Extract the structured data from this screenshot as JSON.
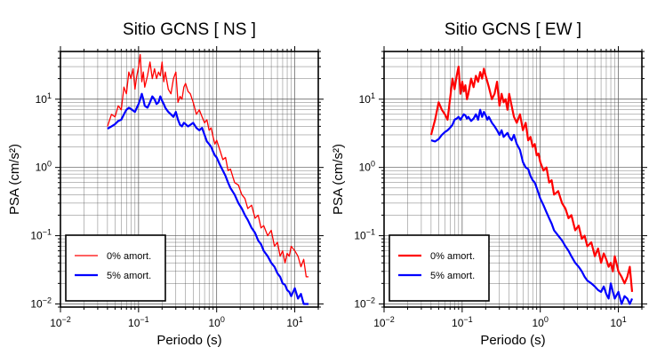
{
  "chart_data": [
    {
      "type": "line",
      "title": "Sitio GCNS [ NS ]",
      "xlabel": "Periodo (s)",
      "ylabel": "PSA (cm/s²)",
      "xscale": "log",
      "yscale": "log",
      "xlim": [
        0.01,
        20
      ],
      "ylim": [
        0.009,
        50
      ],
      "grid": true,
      "legend_position": "bottom-left",
      "xticks": [
        {
          "value": 0.01,
          "base": "10",
          "exp": "−2"
        },
        {
          "value": 0.1,
          "base": "10",
          "exp": "−1"
        },
        {
          "value": 1,
          "base": "10",
          "exp": "0"
        },
        {
          "value": 10,
          "base": "10",
          "exp": "1"
        }
      ],
      "yticks": [
        {
          "value": 0.01,
          "base": "10",
          "exp": "−2"
        },
        {
          "value": 0.1,
          "base": "10",
          "exp": "−1"
        },
        {
          "value": 1,
          "base": "10",
          "exp": "0"
        },
        {
          "value": 10,
          "base": "10",
          "exp": "1"
        }
      ],
      "series": [
        {
          "name": "0% amort.",
          "color": "#ff0000",
          "width": 1.3,
          "x": [
            0.04,
            0.045,
            0.05,
            0.055,
            0.06,
            0.065,
            0.07,
            0.075,
            0.08,
            0.085,
            0.09,
            0.095,
            0.1,
            0.105,
            0.11,
            0.115,
            0.12,
            0.13,
            0.14,
            0.15,
            0.16,
            0.17,
            0.18,
            0.19,
            0.2,
            0.21,
            0.22,
            0.24,
            0.26,
            0.28,
            0.3,
            0.32,
            0.34,
            0.36,
            0.38,
            0.4,
            0.43,
            0.46,
            0.5,
            0.55,
            0.6,
            0.65,
            0.7,
            0.75,
            0.8,
            0.85,
            0.9,
            0.95,
            1.0,
            1.1,
            1.2,
            1.3,
            1.4,
            1.5,
            1.7,
            1.9,
            2.1,
            2.3,
            2.5,
            2.8,
            3.1,
            3.4,
            3.7,
            4.0,
            4.5,
            5.0,
            5.5,
            6.0,
            6.5,
            7.0,
            7.5,
            8.0,
            8.5,
            9.0,
            10.0,
            11.0,
            12.0,
            13.0,
            14.0,
            15.0
          ],
          "y": [
            4,
            6,
            5.5,
            8,
            7,
            15,
            12,
            25,
            20,
            28,
            14,
            22,
            30,
            45,
            18,
            25,
            15,
            22,
            35,
            20,
            28,
            20,
            25,
            22,
            35,
            18,
            25,
            14,
            12,
            20,
            25,
            9,
            11,
            10,
            15,
            17,
            13,
            12,
            9,
            6,
            7,
            5.5,
            4.5,
            5,
            3.5,
            3.8,
            2.8,
            2.2,
            2.5,
            1.8,
            1.3,
            1.4,
            0.9,
            0.95,
            0.6,
            0.55,
            0.4,
            0.35,
            0.25,
            0.28,
            0.18,
            0.2,
            0.13,
            0.14,
            0.1,
            0.12,
            0.07,
            0.08,
            0.05,
            0.06,
            0.04,
            0.055,
            0.05,
            0.07,
            0.06,
            0.05,
            0.035,
            0.045,
            0.025,
            0.025
          ]
        },
        {
          "name": "5% amort.",
          "color": "#0000ff",
          "width": 2.2,
          "x": [
            0.04,
            0.045,
            0.05,
            0.055,
            0.06,
            0.065,
            0.07,
            0.075,
            0.08,
            0.085,
            0.09,
            0.095,
            0.1,
            0.105,
            0.11,
            0.115,
            0.12,
            0.13,
            0.14,
            0.15,
            0.16,
            0.17,
            0.18,
            0.19,
            0.2,
            0.21,
            0.22,
            0.24,
            0.26,
            0.28,
            0.3,
            0.32,
            0.34,
            0.36,
            0.38,
            0.4,
            0.43,
            0.46,
            0.5,
            0.55,
            0.6,
            0.65,
            0.7,
            0.75,
            0.8,
            0.85,
            0.9,
            0.95,
            1.0,
            1.1,
            1.2,
            1.3,
            1.4,
            1.5,
            1.7,
            1.9,
            2.1,
            2.3,
            2.5,
            2.8,
            3.1,
            3.4,
            3.7,
            4.0,
            4.5,
            5.0,
            5.5,
            6.0,
            6.5,
            7.0,
            7.5,
            8.0,
            8.5,
            9.0,
            10.0,
            11.0,
            12.0,
            13.0,
            14.0,
            15.0
          ],
          "y": [
            3.7,
            4.0,
            4.3,
            4.8,
            5.0,
            6.0,
            7.0,
            7.5,
            7.2,
            6.8,
            6.5,
            7.5,
            8.5,
            10.0,
            12.0,
            10.0,
            8.0,
            7.5,
            9.0,
            11.0,
            10.0,
            8.5,
            9.0,
            11.0,
            9.5,
            8.5,
            7.5,
            6.5,
            6.0,
            5.5,
            6.5,
            5.0,
            4.2,
            4.0,
            4.5,
            4.3,
            4.0,
            4.2,
            4.5,
            3.8,
            3.5,
            3.8,
            3.0,
            2.4,
            2.2,
            2.0,
            1.7,
            1.5,
            1.4,
            1.1,
            0.9,
            0.75,
            0.6,
            0.5,
            0.4,
            0.3,
            0.25,
            0.2,
            0.17,
            0.13,
            0.11,
            0.085,
            0.075,
            0.06,
            0.05,
            0.04,
            0.035,
            0.028,
            0.025,
            0.02,
            0.019,
            0.016,
            0.015,
            0.013,
            0.017,
            0.012,
            0.014,
            0.01,
            0.01,
            0.01
          ]
        }
      ]
    },
    {
      "type": "line",
      "title": "Sitio GCNS [ EW ]",
      "xlabel": "Periodo (s)",
      "ylabel": "PSA (cm/s²)",
      "xscale": "log",
      "yscale": "log",
      "xlim": [
        0.01,
        20
      ],
      "ylim": [
        0.009,
        50
      ],
      "grid": true,
      "legend_position": "bottom-left",
      "xticks": [
        {
          "value": 0.01,
          "base": "10",
          "exp": "−2"
        },
        {
          "value": 0.1,
          "base": "10",
          "exp": "−1"
        },
        {
          "value": 1,
          "base": "10",
          "exp": "0"
        },
        {
          "value": 10,
          "base": "10",
          "exp": "1"
        }
      ],
      "yticks": [
        {
          "value": 0.01,
          "base": "10",
          "exp": "−2"
        },
        {
          "value": 0.1,
          "base": "10",
          "exp": "−1"
        },
        {
          "value": 1,
          "base": "10",
          "exp": "0"
        },
        {
          "value": 10,
          "base": "10",
          "exp": "1"
        }
      ],
      "series": [
        {
          "name": "0% amort.",
          "color": "#ff0000",
          "width": 2.2,
          "x": [
            0.04,
            0.045,
            0.05,
            0.055,
            0.06,
            0.065,
            0.07,
            0.075,
            0.08,
            0.085,
            0.09,
            0.095,
            0.1,
            0.105,
            0.11,
            0.115,
            0.12,
            0.13,
            0.14,
            0.15,
            0.16,
            0.17,
            0.18,
            0.19,
            0.2,
            0.21,
            0.22,
            0.24,
            0.26,
            0.28,
            0.3,
            0.32,
            0.34,
            0.36,
            0.38,
            0.4,
            0.43,
            0.46,
            0.5,
            0.55,
            0.6,
            0.65,
            0.7,
            0.75,
            0.8,
            0.85,
            0.9,
            0.95,
            1.0,
            1.1,
            1.2,
            1.3,
            1.4,
            1.5,
            1.7,
            1.9,
            2.1,
            2.3,
            2.5,
            2.8,
            3.1,
            3.4,
            3.7,
            4.0,
            4.5,
            5.0,
            5.5,
            6.0,
            6.5,
            7.0,
            7.5,
            8.0,
            8.5,
            9.0,
            10.0,
            11.0,
            12.0,
            13.0,
            14.0,
            15.0
          ],
          "y": [
            3,
            5,
            9,
            7,
            6,
            5,
            10,
            20,
            14,
            22,
            30,
            12,
            18,
            13,
            16,
            10,
            12,
            20,
            15,
            22,
            18,
            25,
            20,
            28,
            22,
            18,
            15,
            10,
            12,
            18,
            8,
            12,
            9,
            10,
            7,
            12,
            8,
            5.5,
            4.5,
            6,
            3.5,
            4.5,
            2.5,
            2.8,
            2.0,
            2.2,
            1.5,
            1.6,
            1.2,
            0.9,
            1.0,
            0.6,
            0.65,
            0.4,
            0.45,
            0.3,
            0.25,
            0.18,
            0.2,
            0.12,
            0.14,
            0.09,
            0.1,
            0.07,
            0.08,
            0.05,
            0.065,
            0.04,
            0.055,
            0.045,
            0.035,
            0.04,
            0.03,
            0.05,
            0.03,
            0.025,
            0.02,
            0.025,
            0.035,
            0.015
          ]
        },
        {
          "name": "5% amort.",
          "color": "#0000ff",
          "width": 2.2,
          "x": [
            0.04,
            0.045,
            0.05,
            0.055,
            0.06,
            0.065,
            0.07,
            0.075,
            0.08,
            0.085,
            0.09,
            0.095,
            0.1,
            0.105,
            0.11,
            0.115,
            0.12,
            0.13,
            0.14,
            0.15,
            0.16,
            0.17,
            0.18,
            0.19,
            0.2,
            0.21,
            0.22,
            0.24,
            0.26,
            0.28,
            0.3,
            0.32,
            0.34,
            0.36,
            0.38,
            0.4,
            0.43,
            0.46,
            0.5,
            0.55,
            0.6,
            0.65,
            0.7,
            0.75,
            0.8,
            0.85,
            0.9,
            0.95,
            1.0,
            1.1,
            1.2,
            1.3,
            1.4,
            1.5,
            1.7,
            1.9,
            2.1,
            2.3,
            2.5,
            2.8,
            3.1,
            3.4,
            3.7,
            4.0,
            4.5,
            5.0,
            5.5,
            6.0,
            6.5,
            7.0,
            7.5,
            8.0,
            8.5,
            9.0,
            10.0,
            11.0,
            12.0,
            13.0,
            14.0,
            15.0
          ],
          "y": [
            2.5,
            2.4,
            2.6,
            3.0,
            3.3,
            3.5,
            3.8,
            4.2,
            5.0,
            5.2,
            5.5,
            5.0,
            5.5,
            6.0,
            5.8,
            5.2,
            5.5,
            4.8,
            5.2,
            6.0,
            5.0,
            7.0,
            5.5,
            6.5,
            5.8,
            5.0,
            5.5,
            4.5,
            4.0,
            3.5,
            3.0,
            3.5,
            2.8,
            3.0,
            3.2,
            2.8,
            2.5,
            3.0,
            2.2,
            1.8,
            1.2,
            1.0,
            0.95,
            0.75,
            0.65,
            0.6,
            0.5,
            0.42,
            0.35,
            0.28,
            0.22,
            0.18,
            0.15,
            0.12,
            0.1,
            0.085,
            0.07,
            0.06,
            0.05,
            0.04,
            0.035,
            0.03,
            0.025,
            0.022,
            0.02,
            0.018,
            0.016,
            0.015,
            0.018,
            0.014,
            0.012,
            0.02,
            0.015,
            0.012,
            0.015,
            0.01,
            0.013,
            0.012,
            0.01,
            0.012
          ]
        }
      ]
    }
  ]
}
